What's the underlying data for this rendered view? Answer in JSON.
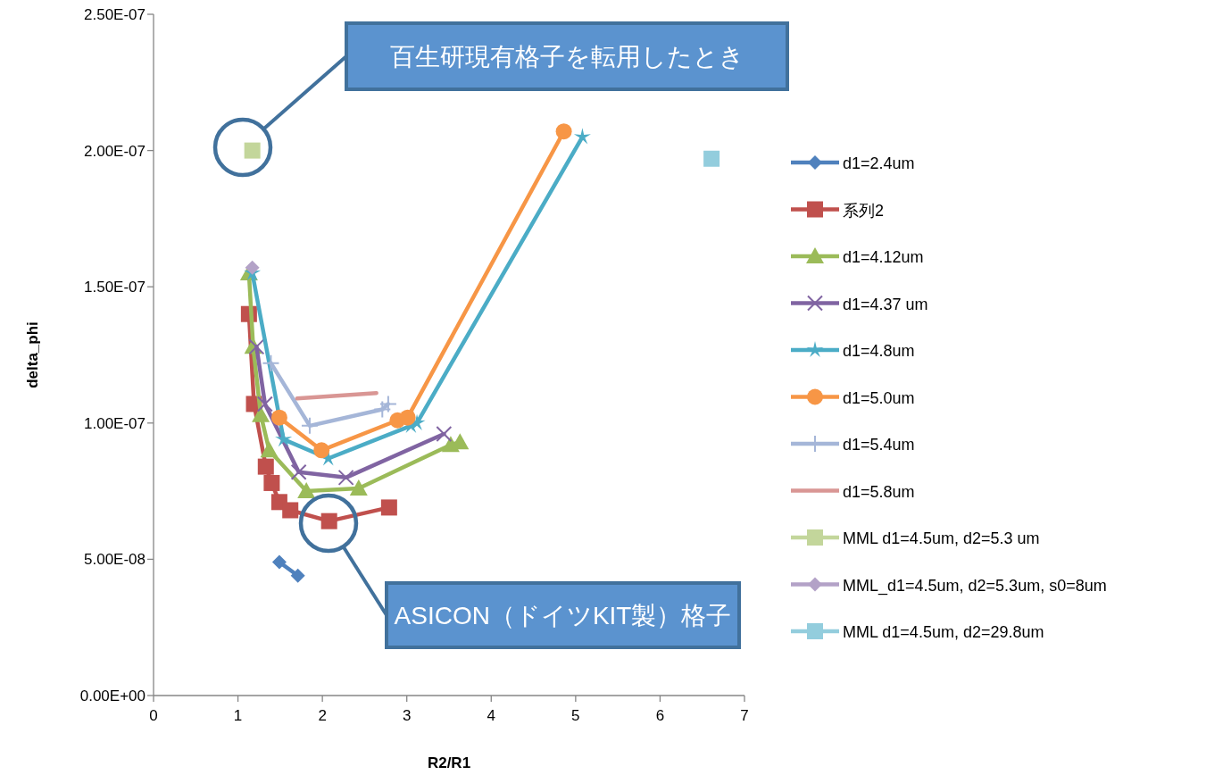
{
  "chart_data": {
    "type": "line",
    "xlabel": "R2/R1",
    "ylabel": "delta_phi",
    "xlim": [
      0,
      7
    ],
    "xticks": [
      0,
      1,
      2,
      3,
      4,
      5,
      6,
      7
    ],
    "ylim": [
      0,
      2.5e-07
    ],
    "yticks": [
      {
        "value": 0,
        "label": "0.00E+00"
      },
      {
        "value": 5e-08,
        "label": "5.00E-08"
      },
      {
        "value": 1e-07,
        "label": "1.00E-07"
      },
      {
        "value": 1.5e-07,
        "label": "1.50E-07"
      },
      {
        "value": 2e-07,
        "label": "2.00E-07"
      },
      {
        "value": 2.5e-07,
        "label": "2.50E-07"
      }
    ],
    "grid": false,
    "legend": "right",
    "series": [
      {
        "name": "d1=2.4um",
        "color": "#4f81bd",
        "marker": "diamond",
        "x": [
          1.49,
          1.71
        ],
        "values": [
          4.9e-08,
          4.4e-08
        ]
      },
      {
        "name": "系列2",
        "color": "#c0504d",
        "marker": "square",
        "x": [
          1.13,
          1.19,
          1.33,
          1.4,
          1.49,
          1.62,
          2.08,
          2.79
        ],
        "values": [
          1.4e-07,
          1.07e-07,
          8.4e-08,
          7.8e-08,
          7.1e-08,
          6.8e-08,
          6.4e-08,
          6.9e-08
        ]
      },
      {
        "name": "d1=4.12um",
        "color": "#9bbb59",
        "marker": "triangle",
        "x": [
          1.13,
          1.18,
          1.27,
          1.37,
          1.81,
          2.43,
          3.52,
          3.63
        ],
        "values": [
          1.55e-07,
          1.28e-07,
          1.03e-07,
          9e-08,
          7.5e-08,
          7.6e-08,
          9.2e-08,
          9.3e-08
        ]
      },
      {
        "name": "d1=4.37 um",
        "color": "#8064a2",
        "marker": "cross",
        "x": [
          1.22,
          1.32,
          1.72,
          2.28,
          3.44
        ],
        "values": [
          1.28e-07,
          1.07e-07,
          8.2e-08,
          8e-08,
          9.6e-08
        ]
      },
      {
        "name": "d1=4.8um",
        "color": "#4bacc6",
        "marker": "star",
        "x": [
          1.17,
          1.54,
          2.07,
          3.05,
          3.12,
          5.08
        ],
        "values": [
          1.55e-07,
          9.4e-08,
          8.7e-08,
          9.9e-08,
          1e-07,
          2.05e-07
        ]
      },
      {
        "name": "d1=5.0um",
        "color": "#f79646",
        "marker": "circle",
        "x": [
          1.49,
          1.99,
          2.89,
          3.01,
          4.86
        ],
        "values": [
          1.02e-07,
          9e-08,
          1.01e-07,
          1.02e-07,
          2.07e-07
        ]
      },
      {
        "name": "d1=5.4um",
        "color": "#a5b6d8",
        "marker": "plus",
        "x": [
          1.39,
          1.85,
          2.71,
          2.78
        ],
        "values": [
          1.22e-07,
          9.9e-08,
          1.05e-07,
          1.07e-07
        ]
      },
      {
        "name": "d1=5.8um",
        "color": "#d99694",
        "marker": "none",
        "x": [
          1.7,
          2.64
        ],
        "values": [
          1.09e-07,
          1.11e-07
        ]
      },
      {
        "name": "MML d1=4.5um, d2=5.3 um",
        "color": "#c3d69b",
        "marker": "square",
        "x": [
          1.17
        ],
        "values": [
          2e-07
        ]
      },
      {
        "name": "MML_d1=4.5um, d2=5.3um, s0=8um",
        "color": "#b3a2c7",
        "marker": "diamond",
        "x": [
          1.17
        ],
        "values": [
          1.57e-07
        ]
      },
      {
        "name": "MML d1=4.5um, d2=29.8um",
        "color": "#93cddd",
        "marker": "square",
        "x": [
          6.61
        ],
        "values": [
          1.97e-07
        ]
      }
    ],
    "annotations": [
      "百生研現有格子を転用したとき",
      "ASICON（ドイツKIT製）格子"
    ]
  }
}
